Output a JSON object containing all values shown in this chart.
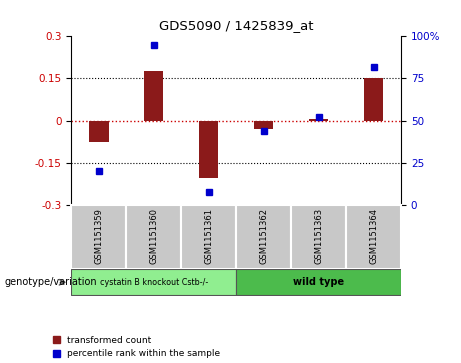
{
  "title": "GDS5090 / 1425839_at",
  "samples": [
    "GSM1151359",
    "GSM1151360",
    "GSM1151361",
    "GSM1151362",
    "GSM1151363",
    "GSM1151364"
  ],
  "transformed_counts": [
    -0.075,
    0.175,
    -0.205,
    -0.03,
    0.005,
    0.15
  ],
  "percentile_ranks": [
    20,
    95,
    8,
    44,
    52,
    82
  ],
  "ylim_left": [
    -0.3,
    0.3
  ],
  "ylim_right": [
    0,
    100
  ],
  "yticks_left": [
    -0.3,
    -0.15,
    0.0,
    0.15,
    0.3
  ],
  "yticks_right": [
    0,
    25,
    50,
    75,
    100
  ],
  "bar_color": "#8B1A1A",
  "dot_color": "#0000CC",
  "zero_line_color": "#CC0000",
  "grid_color": "#000000",
  "group1_label": "cystatin B knockout Cstb-/-",
  "group2_label": "wild type",
  "group1_color": "#90EE90",
  "group2_color": "#4CBB4C",
  "sample_box_color": "#C8C8C8",
  "genotype_label": "genotype/variation",
  "legend_bar_label": "transformed count",
  "legend_dot_label": "percentile rank within the sample",
  "background_color": "#FFFFFF"
}
